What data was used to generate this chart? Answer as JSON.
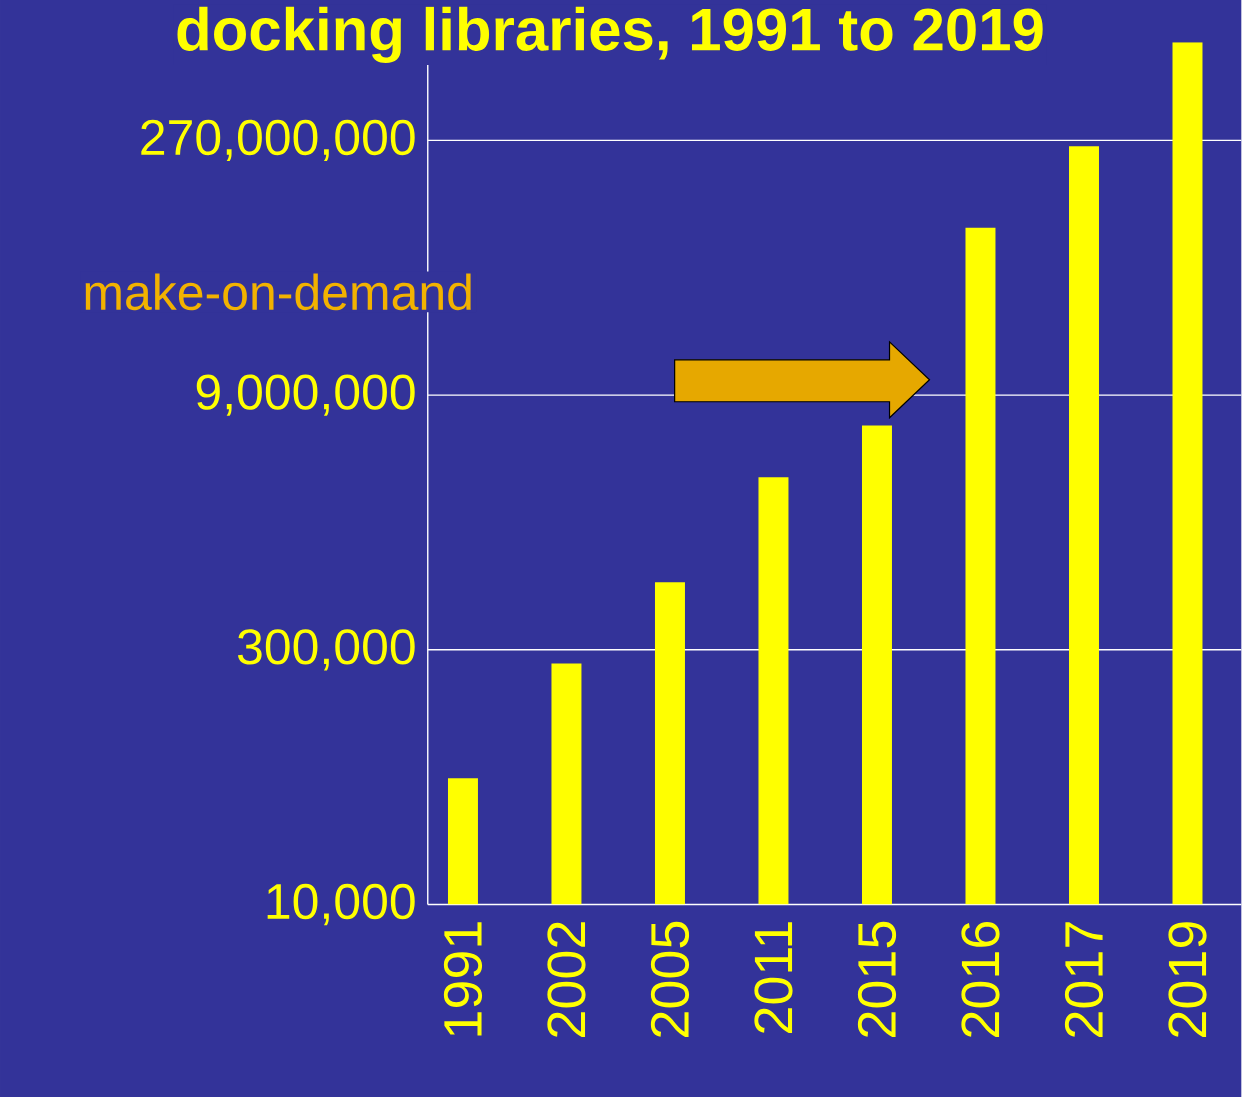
{
  "chart_data": {
    "type": "bar",
    "title": "docking libraries, 1991 to 2019",
    "categories": [
      "1991",
      "2002",
      "2005",
      "2011",
      "2015",
      "2016",
      "2017",
      "2019"
    ],
    "values": [
      54000,
      250000,
      740000,
      3000000,
      6000000,
      84000000,
      250000000,
      1000000000
    ],
    "color": "#ffff00",
    "log": true,
    "grid": "y",
    "ylim": [
      10000,
      1500000000
    ],
    "yticks": [
      {
        "value": 10000,
        "label": "10,000"
      },
      {
        "value": 300000,
        "label": "300,000"
      },
      {
        "value": 9000000,
        "label": "9,000,000"
      },
      {
        "value": 270000000,
        "label": "270,000,000"
      }
    ],
    "annotations": [
      "make-on-demand"
    ]
  }
}
